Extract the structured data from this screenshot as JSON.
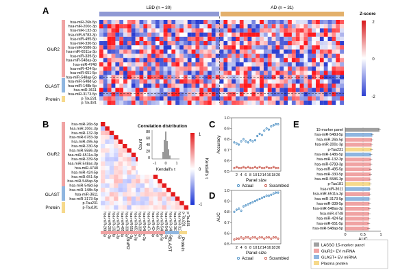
{
  "colors": {
    "lbd": "#8f99d4",
    "ad": "#e3b06a",
    "glur2": "#f0a3a3",
    "glast": "#8fb6e0",
    "protein": "#f6d98b",
    "lasso": "#a0a0a0",
    "actual": "#2b7bb9",
    "scrambled": "#c0392b",
    "diag": "#e41a1c"
  },
  "panel_letters": {
    "a": "A",
    "b": "B",
    "c": "C",
    "d": "D",
    "e": "E"
  },
  "groups": {
    "lbd": "LBD (n = 30)",
    "ad": "AD (n = 31)"
  },
  "zscore": {
    "title": "Z-score",
    "ticks": [
      "2",
      "0",
      "-2"
    ]
  },
  "categories": {
    "glur2": "GluR2",
    "glast": "GLAST",
    "protein": "Protein"
  },
  "features_a": [
    "hsa-miR-26b-5p",
    "hsa-miR-200c-3p",
    "hsa-miR-132-3p",
    "hsa-miR-6783-3p",
    "hsa-miR-495-5p",
    "hsa-miR-330-5p",
    "hsa-miR-5586-3p",
    "hsa-miR-6511a-3p",
    "hsa-miR-339-5p",
    "hsa-miR-548as-3p",
    "hsa-miR-4748",
    "hsa-miR-424-5p",
    "hsa-miR-651-5p",
    "hsa-miR-548ap-5p",
    "hsa-miR-548d-5p",
    "hsa-miR-148b-5p",
    "hsa-miR-3611",
    "hsa-miR-3173-5p",
    "p-Tau231",
    "p-Tau181"
  ],
  "features_b": [
    "hsa-miR-26b-5p",
    "hsa-miR-200c-3p",
    "hsa-miR-132-3p",
    "hsa-miR-6783-3p",
    "hsa-miR-495-5p",
    "hsa-miR-330-5p",
    "hsa-miR-5586-3p",
    "hsa-miR-6511a-3p",
    "hsa-miR-339-5p",
    "hsa-miR-548as-3p",
    "hsa-miR-4748",
    "hsa-miR-424-5p",
    "hsa-miR-651-5p",
    "hsa-miR-548ap-5p",
    "hsa-miR-548d-5p",
    "hsa-miR-148b-5p",
    "hsa-miR-3611",
    "hsa-miR-3173-5p",
    "p-Tau231",
    "p-Tau181"
  ],
  "correlation": {
    "colorbar_label": "Kendall's τ",
    "ticks": [
      "1",
      "0",
      "-1"
    ],
    "inset_title": "Correlation distribution",
    "inset_ylabel": "Count",
    "inset_xlabel": "Kendall's τ",
    "inset_yticks": [
      "80",
      "60",
      "40",
      "20",
      "0"
    ],
    "inset_xticks": [
      "-1",
      "0",
      "1"
    ]
  },
  "legend_cd": {
    "actual": "Actual",
    "scrambled": "Scrambled"
  },
  "chart_data": [
    {
      "type": "scatter",
      "title": "",
      "xlabel": "Panel size",
      "ylabel": "Accuracy",
      "x": [
        1,
        2,
        3,
        4,
        5,
        6,
        7,
        8,
        9,
        10,
        11,
        12,
        13,
        14,
        15,
        16,
        17,
        18,
        19,
        20
      ],
      "series": [
        {
          "name": "Actual",
          "values": [
            0.77,
            0.76,
            0.75,
            0.78,
            0.8,
            0.78,
            0.77,
            0.79,
            0.78,
            0.79,
            0.83,
            0.85,
            0.84,
            0.88,
            0.9,
            0.89,
            0.92,
            0.93,
            0.94,
            0.94
          ]
        },
        {
          "name": "Scrambled",
          "values": [
            0.53,
            0.54,
            0.53,
            0.53,
            0.54,
            0.53,
            0.54,
            0.53,
            0.53,
            0.54,
            0.53,
            0.54,
            0.53,
            0.53,
            0.54,
            0.53,
            0.53,
            0.54,
            0.53,
            0.53
          ]
        }
      ],
      "xticks": [
        "2",
        "4",
        "6",
        "8",
        "10",
        "12",
        "14",
        "16",
        "18",
        "20"
      ],
      "yticks": [
        "1.0",
        "0.9",
        "0.8",
        "0.7",
        "0.6",
        "0.5"
      ],
      "ylim": [
        0.5,
        1.0
      ]
    },
    {
      "type": "scatter",
      "title": "",
      "xlabel": "Panel size",
      "ylabel": "AUC",
      "x": [
        1,
        2,
        3,
        4,
        5,
        6,
        7,
        8,
        9,
        10,
        11,
        12,
        13,
        14,
        15,
        16,
        17,
        18,
        19,
        20
      ],
      "series": [
        {
          "name": "Actual",
          "values": [
            0.8,
            0.82,
            0.83,
            0.81,
            0.85,
            0.86,
            0.87,
            0.88,
            0.89,
            0.9,
            0.91,
            0.92,
            0.93,
            0.94,
            0.95,
            0.95,
            0.96,
            0.97,
            0.98,
            0.98
          ]
        },
        {
          "name": "Scrambled",
          "values": [
            0.54,
            0.55,
            0.55,
            0.56,
            0.55,
            0.56,
            0.56,
            0.55,
            0.56,
            0.56,
            0.55,
            0.56,
            0.56,
            0.55,
            0.56,
            0.56,
            0.55,
            0.56,
            0.56,
            0.55
          ]
        }
      ],
      "xticks": [
        "2",
        "4",
        "6",
        "8",
        "10",
        "12",
        "14",
        "16",
        "18",
        "20"
      ],
      "yticks": [
        "1.0",
        "0.9",
        "0.8",
        "0.7",
        "0.6",
        "0.5"
      ],
      "ylim": [
        0.5,
        1.0
      ]
    },
    {
      "type": "bar",
      "title": "",
      "xlabel": "",
      "ylabel": "AUC",
      "categories": [
        "15-marker panel",
        "hsa-miR-548d-5p",
        "hsa-miR-26b-5p",
        "hsa-miR-200c-3p",
        "p-Tau231",
        "hsa-miR-148b-5p",
        "hsa-miR-132-3p",
        "hsa-miR-6783-3p",
        "hsa-miR-495-5p",
        "hsa-miR-330-5p",
        "hsa-miR-5586-3p",
        "p-Tau181",
        "hsa-miR-3611",
        "hsa-miR-6511a-3p",
        "hsa-miR-3173-5p",
        "hsa-miR-339-5p",
        "hsa-miR-548as-3p",
        "hsa-miR-4748",
        "hsa-miR-424-5p",
        "hsa-miR-651-5p",
        "hsa-miR-548ap-5p"
      ],
      "values": [
        0.96,
        0.76,
        0.75,
        0.74,
        0.74,
        0.72,
        0.72,
        0.72,
        0.71,
        0.71,
        0.7,
        0.7,
        0.69,
        0.69,
        0.68,
        0.68,
        0.68,
        0.67,
        0.67,
        0.66,
        0.66
      ],
      "groups": [
        "lasso",
        "glast",
        "glur2",
        "glur2",
        "protein",
        "glast",
        "glur2",
        "glur2",
        "glur2",
        "glur2",
        "glur2",
        "protein",
        "glast",
        "glur2",
        "glast",
        "glur2",
        "glur2",
        "glur2",
        "glur2",
        "glur2",
        "glur2"
      ],
      "xticks": [
        "0",
        "0.5",
        "1"
      ],
      "xlim": [
        0,
        1
      ]
    }
  ],
  "legend_e": [
    {
      "key": "lasso",
      "label": "LASSO 15-marker panel"
    },
    {
      "key": "glur2",
      "label": "GluR2+ EV miRNA"
    },
    {
      "key": "glast",
      "label": "GLAST+ EV miRNA"
    },
    {
      "key": "protein",
      "label": "Plasma protein"
    }
  ]
}
